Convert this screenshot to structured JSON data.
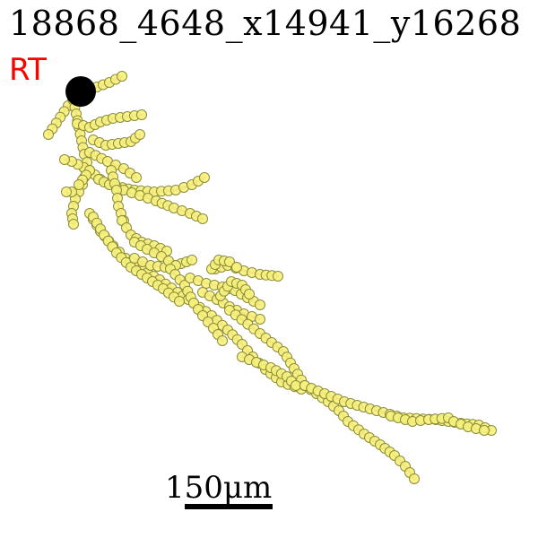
{
  "title": "18868_4648_x14941_y16268",
  "region_label": "RT",
  "scale_label": "150μm",
  "colors": {
    "edge": "#f07c6e",
    "node_fill": "#f6f27c",
    "node_stroke": "#8c8c3a",
    "soma": "#000000",
    "region_label": "#ff0000"
  }
}
